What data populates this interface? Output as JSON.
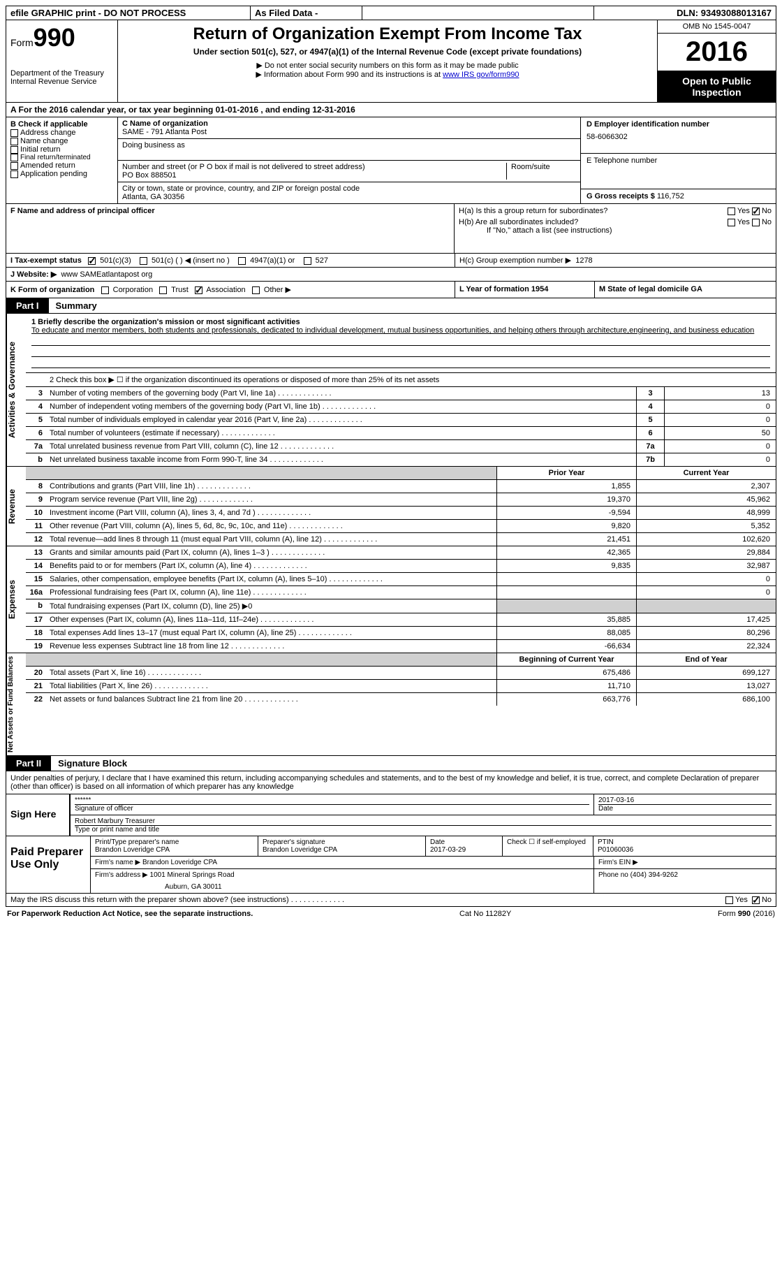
{
  "top": {
    "efile": "efile GRAPHIC print - DO NOT PROCESS",
    "asfiled": "As Filed Data -",
    "dln_label": "DLN:",
    "dln": "93493088013167"
  },
  "header": {
    "form_prefix": "Form",
    "form_num": "990",
    "dept": "Department of the Treasury",
    "irs": "Internal Revenue Service",
    "title": "Return of Organization Exempt From Income Tax",
    "subtitle": "Under section 501(c), 527, or 4947(a)(1) of the Internal Revenue Code (except private foundations)",
    "note1": "▶ Do not enter social security numbers on this form as it may be made public",
    "note2": "▶ Information about Form 990 and its instructions is at ",
    "link": "www IRS gov/form990",
    "omb": "OMB No  1545-0047",
    "year": "2016",
    "inspection": "Open to Public Inspection"
  },
  "sectionA": "A   For the 2016 calendar year, or tax year beginning 01-01-2016   , and ending 12-31-2016",
  "colB": {
    "label": "B Check if applicable",
    "address": "Address change",
    "name": "Name change",
    "initial": "Initial return",
    "final": "Final return/terminated",
    "amended": "Amended return",
    "pending": "Application pending"
  },
  "colC": {
    "name_label": "C Name of organization",
    "name": "SAME - 791 Atlanta Post",
    "dba_label": "Doing business as",
    "street_label": "Number and street (or P O  box if mail is not delivered to street address)",
    "room_label": "Room/suite",
    "street": "PO Box 888501",
    "city_label": "City or town, state or province, country, and ZIP or foreign postal code",
    "city": "Atlanta, GA  30356"
  },
  "colD": {
    "ein_label": "D Employer identification number",
    "ein": "58-6066302",
    "tel_label": "E Telephone number",
    "gross_label": "G Gross receipts $",
    "gross": "116,752"
  },
  "rowF": {
    "f_label": "F  Name and address of principal officer",
    "ha": "H(a)  Is this a group return for subordinates?",
    "hb": "H(b)  Are all subordinates included?",
    "hb_note": "If \"No,\" attach a list  (see instructions)",
    "hc": "H(c)  Group exemption number ▶",
    "hc_val": "1278"
  },
  "rowI": {
    "label": "I   Tax-exempt status",
    "c3": "501(c)(3)",
    "c": "501(c) (   ) ◀ (insert no )",
    "a1": "4947(a)(1) or",
    "s527": "527"
  },
  "rowJ": {
    "label": "J   Website: ▶",
    "val": "www SAMEatlantapost org"
  },
  "rowK": {
    "label": "K Form of organization",
    "corp": "Corporation",
    "trust": "Trust",
    "assoc": "Association",
    "other": "Other ▶",
    "l": "L Year of formation  1954",
    "m": "M State of legal domicile  GA"
  },
  "part1": "Part I",
  "part1_title": "Summary",
  "vert": {
    "ag": "Activities & Governance",
    "rev": "Revenue",
    "exp": "Expenses",
    "net": "Net Assets or Fund Balances"
  },
  "mission": {
    "label": "1  Briefly describe the organization's mission or most significant activities",
    "text": "To educate and mentor members, both students and professionals, dedicated to individual development, mutual business opportunities, and helping others through architecture,engineering, and business education"
  },
  "line2": "2   Check this box ▶ ☐  if the organization discontinued its operations or disposed of more than 25% of its net assets",
  "ag_rows": [
    {
      "n": "3",
      "desc": "Number of voting members of the governing body (Part VI, line 1a)",
      "box": "3",
      "val": "13"
    },
    {
      "n": "4",
      "desc": "Number of independent voting members of the governing body (Part VI, line 1b)",
      "box": "4",
      "val": "0"
    },
    {
      "n": "5",
      "desc": "Total number of individuals employed in calendar year 2016 (Part V, line 2a)",
      "box": "5",
      "val": "0"
    },
    {
      "n": "6",
      "desc": "Total number of volunteers (estimate if necessary)",
      "box": "6",
      "val": "50"
    },
    {
      "n": "7a",
      "desc": "Total unrelated business revenue from Part VIII, column (C), line 12",
      "box": "7a",
      "val": "0"
    },
    {
      "n": "b",
      "desc": "Net unrelated business taxable income from Form 990-T, line 34",
      "box": "7b",
      "val": "0"
    }
  ],
  "col_headers": {
    "prior": "Prior Year",
    "current": "Current Year"
  },
  "rev_rows": [
    {
      "n": "8",
      "desc": "Contributions and grants (Part VIII, line 1h)",
      "c1": "1,855",
      "c2": "2,307"
    },
    {
      "n": "9",
      "desc": "Program service revenue (Part VIII, line 2g)",
      "c1": "19,370",
      "c2": "45,962"
    },
    {
      "n": "10",
      "desc": "Investment income (Part VIII, column (A), lines 3, 4, and 7d )",
      "c1": "-9,594",
      "c2": "48,999"
    },
    {
      "n": "11",
      "desc": "Other revenue (Part VIII, column (A), lines 5, 6d, 8c, 9c, 10c, and 11e)",
      "c1": "9,820",
      "c2": "5,352"
    },
    {
      "n": "12",
      "desc": "Total revenue—add lines 8 through 11 (must equal Part VIII, column (A), line 12)",
      "c1": "21,451",
      "c2": "102,620"
    }
  ],
  "exp_rows": [
    {
      "n": "13",
      "desc": "Grants and similar amounts paid (Part IX, column (A), lines 1–3 )",
      "c1": "42,365",
      "c2": "29,884"
    },
    {
      "n": "14",
      "desc": "Benefits paid to or for members (Part IX, column (A), line 4)",
      "c1": "9,835",
      "c2": "32,987"
    },
    {
      "n": "15",
      "desc": "Salaries, other compensation, employee benefits (Part IX, column (A), lines 5–10)",
      "c1": "",
      "c2": "0"
    },
    {
      "n": "16a",
      "desc": "Professional fundraising fees (Part IX, column (A), line 11e)",
      "c1": "",
      "c2": "0"
    },
    {
      "n": "b",
      "desc": "Total fundraising expenses (Part IX, column (D), line 25) ▶0",
      "c1": "",
      "c2": "",
      "shade": true
    },
    {
      "n": "17",
      "desc": "Other expenses (Part IX, column (A), lines 11a–11d, 11f–24e)",
      "c1": "35,885",
      "c2": "17,425"
    },
    {
      "n": "18",
      "desc": "Total expenses  Add lines 13–17 (must equal Part IX, column (A), line 25)",
      "c1": "88,085",
      "c2": "80,296"
    },
    {
      "n": "19",
      "desc": "Revenue less expenses  Subtract line 18 from line 12",
      "c1": "-66,634",
      "c2": "22,324"
    }
  ],
  "net_headers": {
    "begin": "Beginning of Current Year",
    "end": "End of Year"
  },
  "net_rows": [
    {
      "n": "20",
      "desc": "Total assets (Part X, line 16)",
      "c1": "675,486",
      "c2": "699,127"
    },
    {
      "n": "21",
      "desc": "Total liabilities (Part X, line 26)",
      "c1": "11,710",
      "c2": "13,027"
    },
    {
      "n": "22",
      "desc": "Net assets or fund balances  Subtract line 21 from line 20",
      "c1": "663,776",
      "c2": "686,100"
    }
  ],
  "part2": "Part II",
  "part2_title": "Signature Block",
  "perjury": "Under penalties of perjury, I declare that I have examined this return, including accompanying schedules and statements, and to the best of my knowledge and belief, it is true, correct, and complete  Declaration of preparer (other than officer) is based on all information of which preparer has any knowledge",
  "sign": {
    "label": "Sign Here",
    "stars": "******",
    "sig_of": "Signature of officer",
    "date": "2017-03-16",
    "date_label": "Date",
    "name": "Robert Marbury Treasurer",
    "name_label": "Type or print name and title"
  },
  "prep": {
    "label": "Paid Preparer Use Only",
    "print_label": "Print/Type preparer's name",
    "print_val": "Brandon Loveridge CPA",
    "sig_label": "Preparer's signature",
    "sig_val": "Brandon Loveridge CPA",
    "date_label": "Date",
    "date_val": "2017-03-29",
    "check_label": "Check ☐ if self-employed",
    "ptin_label": "PTIN",
    "ptin_val": "P01060036",
    "firm_name_label": "Firm's name    ▶",
    "firm_name": "Brandon Loveridge CPA",
    "firm_ein_label": "Firm's EIN ▶",
    "firm_addr_label": "Firm's address ▶",
    "firm_addr": "1001 Mineral Springs Road",
    "firm_addr2": "Auburn, GA  30011",
    "phone_label": "Phone no  (404) 394-9262"
  },
  "discuss": "May the IRS discuss this return with the preparer shown above? (see instructions)",
  "footer": {
    "left": "For Paperwork Reduction Act Notice, see the separate instructions.",
    "mid": "Cat No  11282Y",
    "right": "Form 990 (2016)"
  }
}
